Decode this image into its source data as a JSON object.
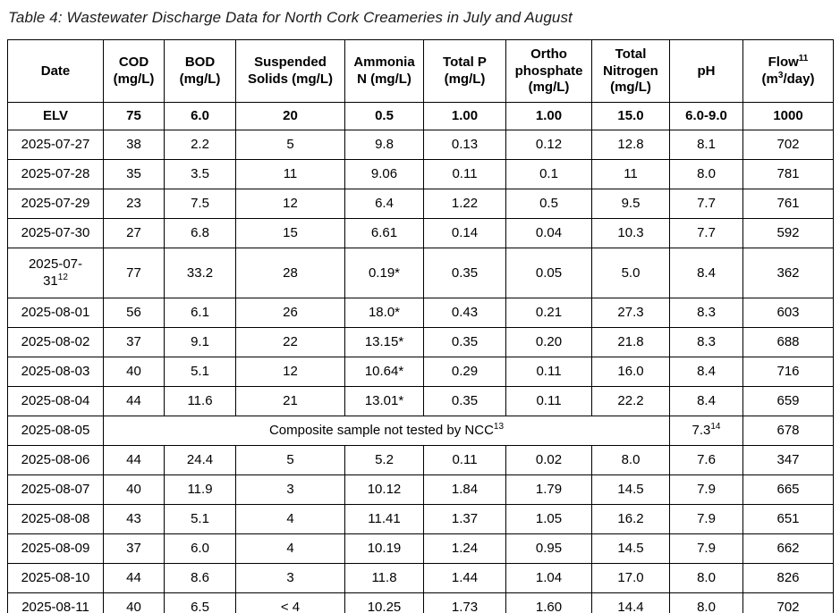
{
  "page": {
    "title": "Table 4: Wastewater Discharge Data for North Cork Creameries in July and August"
  },
  "table": {
    "columns": [
      {
        "id": "date",
        "label": [
          "Date"
        ]
      },
      {
        "id": "cod",
        "label": [
          "COD",
          "\n",
          "(mg/L)"
        ]
      },
      {
        "id": "bod",
        "label": [
          "BOD",
          "\n",
          "(mg/L)"
        ]
      },
      {
        "id": "suspended-solids",
        "label": [
          "Suspended",
          "\n",
          "Solids (mg/L)"
        ]
      },
      {
        "id": "ammonia-n",
        "label": [
          "Ammonia",
          "\n",
          "N (mg/L)"
        ]
      },
      {
        "id": "total-p",
        "label": [
          "Total P",
          "\n",
          "(mg/L)"
        ]
      },
      {
        "id": "orthophosphate",
        "label": [
          "Ortho",
          "\n",
          "phosphate",
          "\n",
          "(mg/L)"
        ]
      },
      {
        "id": "total-nitrogen",
        "label": [
          "Total",
          "\n",
          "Nitrogen",
          "\n",
          "(mg/L)"
        ]
      },
      {
        "id": "ph",
        "label": [
          "pH"
        ]
      },
      {
        "id": "flow",
        "label": [
          "Flow",
          {
            "sup": "11"
          },
          "\n",
          "(m",
          {
            "sup": "3"
          },
          "/day)"
        ]
      }
    ],
    "rows": [
      {
        "type": "elv",
        "cells": [
          "ELV",
          "75",
          "6.0",
          "20",
          "0.5",
          "1.00",
          "1.00",
          "15.0",
          "6.0-9.0",
          "1000"
        ]
      },
      {
        "type": "data",
        "cells": [
          "2025-07-27",
          "38",
          "2.2",
          "5",
          "9.8",
          "0.13",
          "0.12",
          "12.8",
          "8.1",
          "702"
        ]
      },
      {
        "type": "data",
        "cells": [
          "2025-07-28",
          "35",
          "3.5",
          "11",
          "9.06",
          "0.11",
          "0.1",
          "11",
          "8.0",
          "781"
        ]
      },
      {
        "type": "data",
        "cells": [
          "2025-07-29",
          "23",
          "7.5",
          "12",
          "6.4",
          "1.22",
          "0.5",
          "9.5",
          "7.7",
          "761"
        ]
      },
      {
        "type": "data",
        "cells": [
          "2025-07-30",
          "27",
          "6.8",
          "15",
          "6.61",
          "0.14",
          "0.04",
          "10.3",
          "7.7",
          "592"
        ]
      },
      {
        "type": "data",
        "tall": true,
        "cells": [
          [
            "2025-07-",
            "\n",
            "31",
            {
              "sup": "12"
            }
          ],
          "77",
          "33.2",
          "28",
          "0.19*",
          "0.35",
          "0.05",
          "5.0",
          "8.4",
          "362"
        ]
      },
      {
        "type": "data",
        "cells": [
          "2025-08-01",
          "56",
          "6.1",
          "26",
          "18.0*",
          "0.43",
          "0.21",
          "27.3",
          "8.3",
          "603"
        ]
      },
      {
        "type": "data",
        "cells": [
          "2025-08-02",
          "37",
          "9.1",
          "22",
          "13.15*",
          "0.35",
          "0.20",
          "21.8",
          "8.3",
          "688"
        ]
      },
      {
        "type": "data",
        "cells": [
          "2025-08-03",
          "40",
          "5.1",
          "12",
          "10.64*",
          "0.29",
          "0.11",
          "16.0",
          "8.4",
          "716"
        ]
      },
      {
        "type": "data",
        "cells": [
          "2025-08-04",
          "44",
          "11.6",
          "21",
          "13.01*",
          "0.35",
          "0.11",
          "22.2",
          "8.4",
          "659"
        ]
      },
      {
        "type": "data",
        "cells": [
          "2025-08-05",
          {
            "span": 7,
            "v": [
              "Composite sample not tested by NCC",
              {
                "sup": "13"
              }
            ]
          },
          [
            "7.3",
            {
              "sup": "14"
            }
          ],
          "678"
        ]
      },
      {
        "type": "data",
        "cells": [
          "2025-08-06",
          "44",
          "24.4",
          "5",
          "5.2",
          "0.11",
          "0.02",
          "8.0",
          "7.6",
          "347"
        ]
      },
      {
        "type": "data",
        "cells": [
          "2025-08-07",
          "40",
          "11.9",
          "3",
          "10.12",
          "1.84",
          "1.79",
          "14.5",
          "7.9",
          "665"
        ]
      },
      {
        "type": "data",
        "cells": [
          "2025-08-08",
          "43",
          "5.1",
          "4",
          "11.41",
          "1.37",
          "1.05",
          "16.2",
          "7.9",
          "651"
        ]
      },
      {
        "type": "data",
        "cells": [
          "2025-08-09",
          "37",
          "6.0",
          "4",
          "10.19",
          "1.24",
          "0.95",
          "14.5",
          "7.9",
          "662"
        ]
      },
      {
        "type": "data",
        "cells": [
          "2025-08-10",
          "44",
          "8.6",
          "3",
          "11.8",
          "1.44",
          "1.04",
          "17.0",
          "8.0",
          "826"
        ]
      },
      {
        "type": "data",
        "cells": [
          "2025-08-11",
          "40",
          "6.5",
          "< 4",
          "10.25",
          "1.73",
          "1.60",
          "14.4",
          "8.0",
          "702"
        ]
      }
    ]
  },
  "colors": {
    "text": "#1c1c1c",
    "border": "#000000",
    "background": "#ffffff"
  }
}
